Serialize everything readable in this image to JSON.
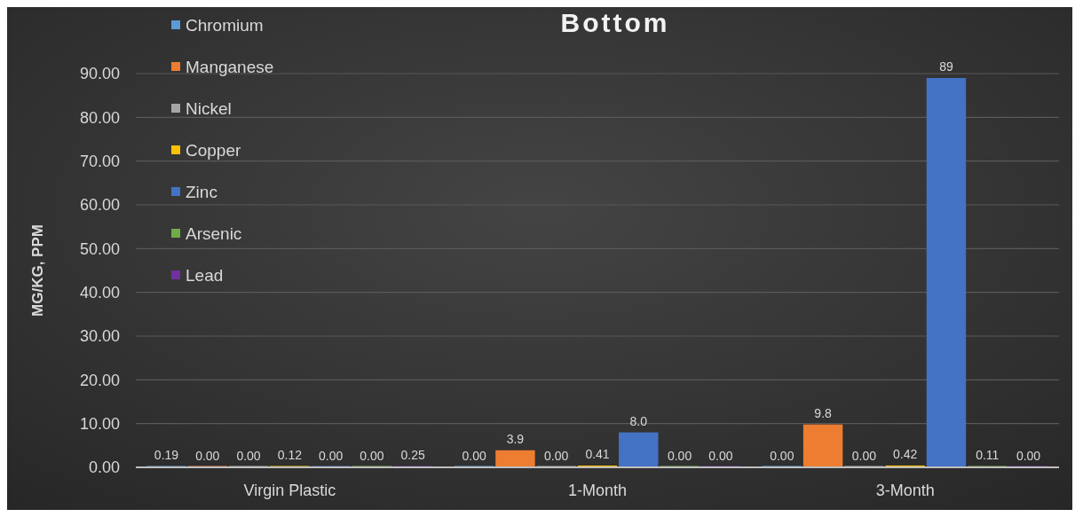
{
  "chart_data": {
    "type": "bar",
    "title": "Bottom",
    "ylabel": "MG/KG, PPM",
    "categories": [
      "Virgin Plastic",
      "1-Month",
      "3-Month"
    ],
    "series": [
      {
        "name": "Chromium",
        "color": "#5b9bd5",
        "values": [
          0.19,
          0,
          0
        ],
        "value_labels": [
          "0.19",
          "0.00",
          "0.00"
        ]
      },
      {
        "name": "Manganese",
        "color": "#ed7d31",
        "values": [
          0,
          3.9,
          9.8
        ],
        "value_labels": [
          "0.00",
          "3.9",
          "9.8"
        ]
      },
      {
        "name": "Nickel",
        "color": "#a5a5a5",
        "values": [
          0,
          0,
          0
        ],
        "value_labels": [
          "0.00",
          "0.00",
          "0.00"
        ]
      },
      {
        "name": "Copper",
        "color": "#ffc000",
        "values": [
          0.12,
          0.41,
          0.42
        ],
        "value_labels": [
          "0.12",
          "0.41",
          "0.42"
        ]
      },
      {
        "name": "Zinc",
        "color": "#4472c4",
        "values": [
          0,
          8.0,
          89
        ],
        "value_labels": [
          "0.00",
          "8.0",
          "89"
        ]
      },
      {
        "name": "Arsenic",
        "color": "#70ad47",
        "values": [
          0,
          0,
          0.11
        ],
        "value_labels": [
          "0.00",
          "0.00",
          "0.11"
        ]
      },
      {
        "name": "Lead",
        "color": "#7030a0",
        "values": [
          0.25,
          0,
          0
        ],
        "value_labels": [
          "0.25",
          "0.00",
          "0.00"
        ]
      }
    ],
    "ylim": [
      0,
      90
    ],
    "yticks": [
      {
        "value": 0,
        "label": "0.00"
      },
      {
        "value": 10,
        "label": "10.00"
      },
      {
        "value": 20,
        "label": "20.00"
      },
      {
        "value": 30,
        "label": "30.00"
      },
      {
        "value": 40,
        "label": "40.00"
      },
      {
        "value": 50,
        "label": "50.00"
      },
      {
        "value": 60,
        "label": "60.00"
      },
      {
        "value": 70,
        "label": "70.00"
      },
      {
        "value": 80,
        "label": "80.00"
      },
      {
        "value": 90,
        "label": "90.00"
      }
    ],
    "grid": "y",
    "legend": "top left"
  }
}
